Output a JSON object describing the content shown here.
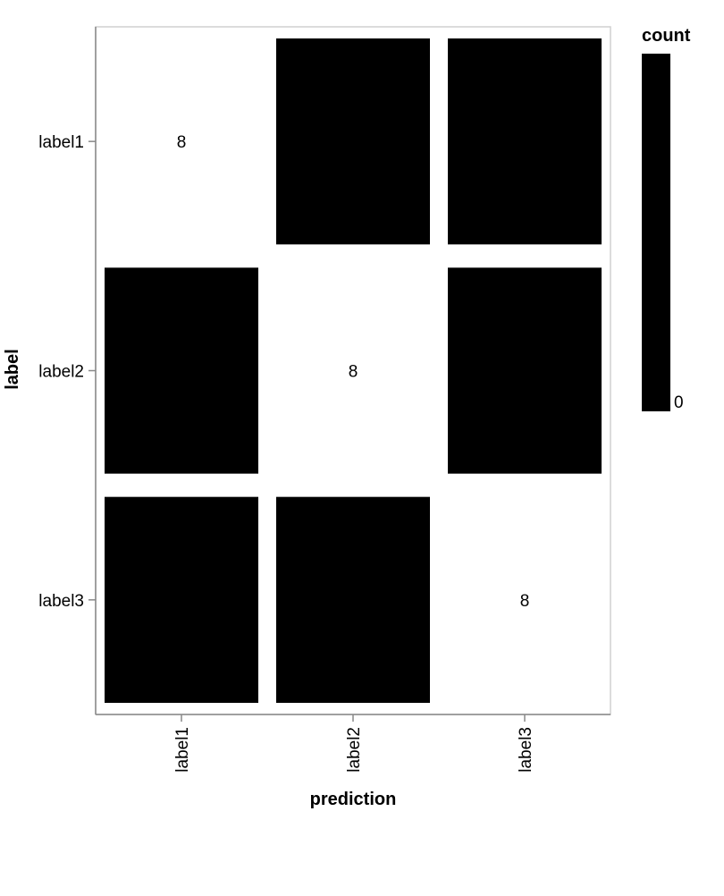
{
  "chart_data": {
    "type": "heatmap",
    "title": "",
    "xlabel": "prediction",
    "ylabel": "label",
    "x_categories": [
      "label1",
      "label2",
      "label3"
    ],
    "y_categories": [
      "label1",
      "label2",
      "label3"
    ],
    "cells": [
      {
        "x": "label1",
        "y": "label1",
        "count": 8,
        "label": "8"
      },
      {
        "x": "label2",
        "y": "label1",
        "count": 0,
        "label": ""
      },
      {
        "x": "label3",
        "y": "label1",
        "count": 0,
        "label": ""
      },
      {
        "x": "label1",
        "y": "label2",
        "count": 0,
        "label": ""
      },
      {
        "x": "label2",
        "y": "label2",
        "count": 8,
        "label": "8"
      },
      {
        "x": "label3",
        "y": "label2",
        "count": 0,
        "label": ""
      },
      {
        "x": "label1",
        "y": "label3",
        "count": 0,
        "label": ""
      },
      {
        "x": "label2",
        "y": "label3",
        "count": 0,
        "label": ""
      },
      {
        "x": "label3",
        "y": "label3",
        "count": 8,
        "label": "8"
      }
    ],
    "legend": {
      "title": "count",
      "tick_labels": [
        "0"
      ],
      "placement": "right"
    },
    "colors": {
      "zero": "#000000",
      "max": "#ffffff"
    },
    "grid": false
  }
}
